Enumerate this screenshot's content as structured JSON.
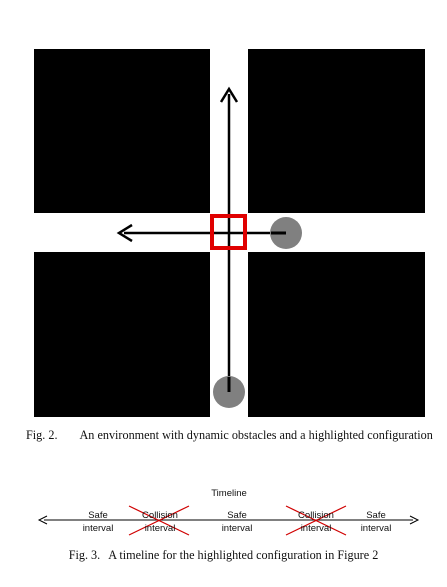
{
  "figure2": {
    "caption_label": "Fig. 2.",
    "caption_text": "An environment with dynamic obstacles and a highlighted configuration",
    "colors": {
      "obstacle": "#000000",
      "free_space": "#ffffff",
      "agent": "#808080",
      "highlight": "#e00000"
    }
  },
  "figure3": {
    "title": "Timeline",
    "intervals": [
      {
        "line1": "Safe",
        "line2": "interval"
      },
      {
        "line1": "Collision",
        "line2": "interval"
      },
      {
        "line1": "Safe",
        "line2": "interval"
      },
      {
        "line1": "Collision",
        "line2": "interval"
      },
      {
        "line1": "Safe",
        "line2": "interval"
      }
    ],
    "caption_label": "Fig. 3.",
    "caption_text": "A timeline for the highlighted configuration in Figure 2"
  }
}
